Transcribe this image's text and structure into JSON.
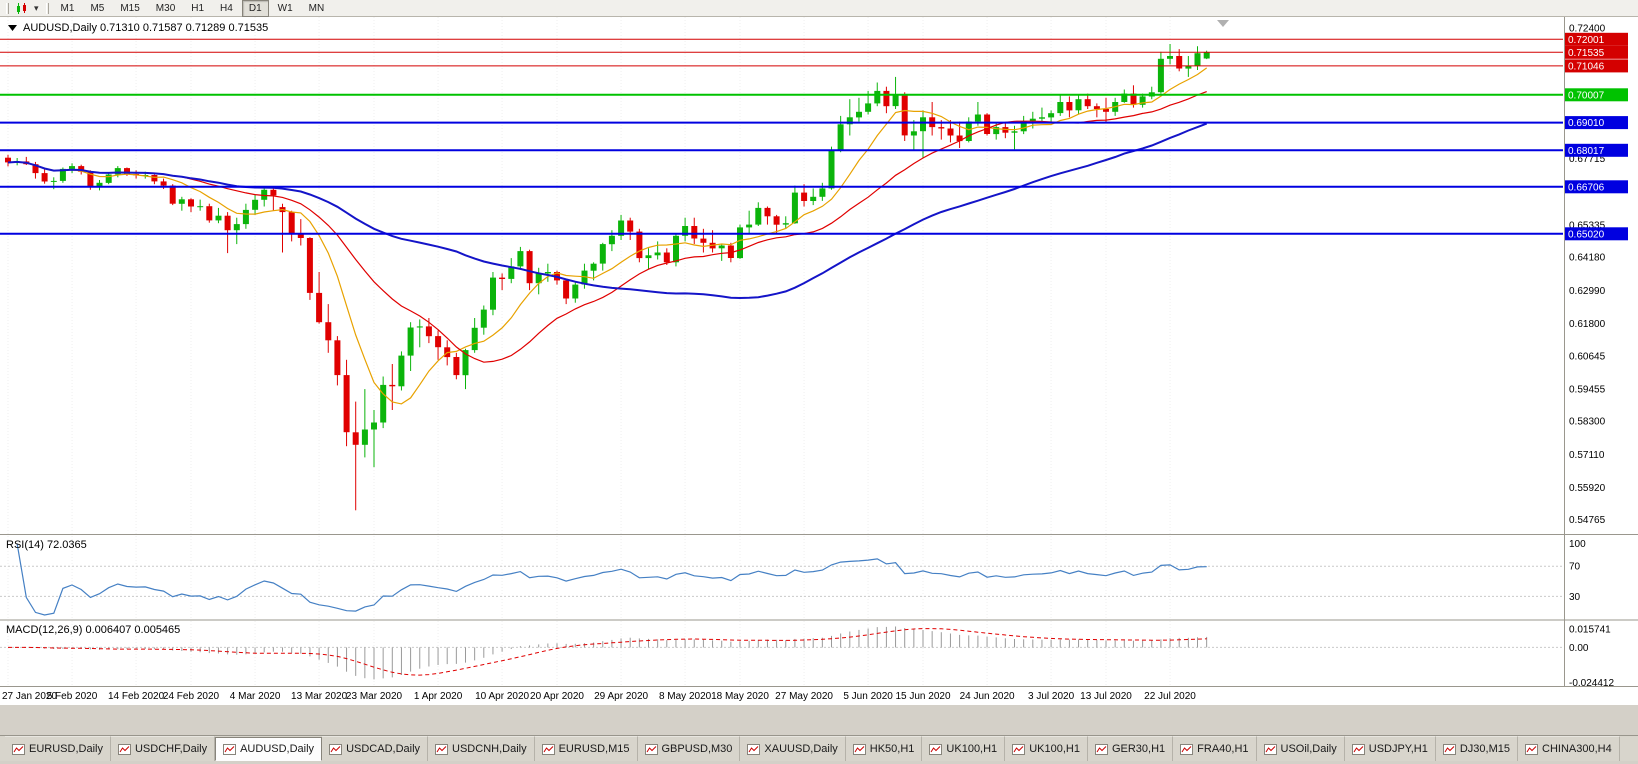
{
  "toolbar": {
    "timeframes": [
      "M1",
      "M5",
      "M15",
      "M30",
      "H1",
      "H4",
      "D1",
      "W1",
      "MN"
    ],
    "active_timeframe": "D1"
  },
  "chart": {
    "type": "candlestick",
    "symbol_title": "AUDUSD,Daily",
    "ohlc_text": "0.71310 0.71587 0.71289 0.71535",
    "colors": {
      "up": "#0bb40b",
      "down": "#e00000",
      "background": "#ffffff"
    },
    "y_axis": {
      "top_price": 0.728,
      "bottom_price": 0.5425,
      "ticks": [
        0.724,
        0.67715,
        0.65335,
        0.6418,
        0.6299,
        0.618,
        0.60645,
        0.59455,
        0.583,
        0.5711,
        0.5592,
        0.54765
      ]
    },
    "levels": [
      {
        "value": 0.72001,
        "label": "0.72001",
        "color": "#d40000",
        "width": 1
      },
      {
        "value": 0.71535,
        "label": "0.71535",
        "color": "#d40000",
        "width": 1
      },
      {
        "value": 0.71046,
        "label": "0.71046",
        "color": "#d40000",
        "width": 1
      },
      {
        "value": 0.70007,
        "label": "0.70007",
        "color": "#00c200",
        "width": 2
      },
      {
        "value": 0.6901,
        "label": "0.69010",
        "color": "#0000e0",
        "width": 2
      },
      {
        "value": 0.68017,
        "label": "0.68017",
        "color": "#0000e0",
        "width": 2
      },
      {
        "value": 0.66706,
        "label": "0.66706",
        "color": "#0000e0",
        "width": 2
      },
      {
        "value": 0.6502,
        "label": "0.65020",
        "color": "#0000e0",
        "width": 2
      }
    ],
    "x_labels": [
      {
        "index": 0,
        "label": "27 Jan 2020"
      },
      {
        "index": 7,
        "label": "5 Feb 2020"
      },
      {
        "index": 14,
        "label": "14 Feb 2020"
      },
      {
        "index": 20,
        "label": "24 Feb 2020"
      },
      {
        "index": 27,
        "label": "4 Mar 2020"
      },
      {
        "index": 34,
        "label": "13 Mar 2020"
      },
      {
        "index": 40,
        "label": "23 Mar 2020"
      },
      {
        "index": 47,
        "label": "1 Apr 2020"
      },
      {
        "index": 54,
        "label": "10 Apr 2020"
      },
      {
        "index": 60,
        "label": "20 Apr 2020"
      },
      {
        "index": 67,
        "label": "29 Apr 2020"
      },
      {
        "index": 74,
        "label": "8 May 2020"
      },
      {
        "index": 80,
        "label": "18 May 2020"
      },
      {
        "index": 87,
        "label": "27 May 2020"
      },
      {
        "index": 94,
        "label": "5 Jun 2020"
      },
      {
        "index": 100,
        "label": "15 Jun 2020"
      },
      {
        "index": 107,
        "label": "24 Jun 2020"
      },
      {
        "index": 114,
        "label": "3 Jul 2020"
      },
      {
        "index": 120,
        "label": "13 Jul 2020"
      },
      {
        "index": 127,
        "label": "22 Jul 2020"
      }
    ],
    "mas": [
      {
        "period": 8,
        "color": "#e8a200",
        "width": 1.2
      },
      {
        "period": 20,
        "color": "#e00000",
        "width": 1.2
      },
      {
        "period": 50,
        "color": "#1414c8",
        "width": 2
      }
    ],
    "rsi": {
      "label": "RSI(14) 72.0365",
      "period": 14,
      "color": "#4580c4",
      "levels": [
        70,
        30
      ],
      "ticks": [
        {
          "value": 100,
          "label": "100"
        },
        {
          "value": 70,
          "label": "70"
        },
        {
          "value": 30,
          "label": "30"
        }
      ]
    },
    "macd": {
      "label": "MACD(12,26,9) 0.006407 0.005465",
      "fast": 12,
      "slow": 26,
      "signal_period": 9,
      "hist_color": "#9a9a9a",
      "signal_color": "#e00000",
      "ticks": [
        {
          "value": 0.015741,
          "label": "0.015741"
        },
        {
          "value": 0,
          "label": "0.00"
        },
        {
          "value": -0.024412,
          "label": "-0.024412"
        }
      ]
    },
    "candles": [
      [
        0.6775,
        0.6786,
        0.6744,
        0.6758
      ],
      [
        0.6758,
        0.6774,
        0.6748,
        0.6762
      ],
      [
        0.6762,
        0.6778,
        0.6749,
        0.6752
      ],
      [
        0.6752,
        0.676,
        0.67,
        0.672
      ],
      [
        0.672,
        0.6733,
        0.6682,
        0.669
      ],
      [
        0.669,
        0.6705,
        0.6662,
        0.6692
      ],
      [
        0.6692,
        0.674,
        0.6685,
        0.6735
      ],
      [
        0.6735,
        0.6755,
        0.672,
        0.6745
      ],
      [
        0.6745,
        0.675,
        0.6715,
        0.6725
      ],
      [
        0.6725,
        0.673,
        0.666,
        0.667
      ],
      [
        0.667,
        0.6695,
        0.6658,
        0.6685
      ],
      [
        0.6685,
        0.6722,
        0.668,
        0.6715
      ],
      [
        0.6715,
        0.6745,
        0.6705,
        0.6738
      ],
      [
        0.6738,
        0.674,
        0.671,
        0.6717
      ],
      [
        0.6717,
        0.673,
        0.67,
        0.6712
      ],
      [
        0.6712,
        0.6725,
        0.67,
        0.6713
      ],
      [
        0.6713,
        0.6715,
        0.668,
        0.669
      ],
      [
        0.669,
        0.67,
        0.6663,
        0.6675
      ],
      [
        0.6675,
        0.668,
        0.6605,
        0.661
      ],
      [
        0.661,
        0.6635,
        0.6585,
        0.6626
      ],
      [
        0.6626,
        0.663,
        0.658,
        0.66
      ],
      [
        0.66,
        0.6625,
        0.6585,
        0.6601
      ],
      [
        0.6601,
        0.661,
        0.6542,
        0.655
      ],
      [
        0.655,
        0.6595,
        0.654,
        0.6567
      ],
      [
        0.6567,
        0.658,
        0.6433,
        0.6515
      ],
      [
        0.6515,
        0.656,
        0.6465,
        0.6537
      ],
      [
        0.6537,
        0.661,
        0.652,
        0.6588
      ],
      [
        0.6588,
        0.6645,
        0.657,
        0.6624
      ],
      [
        0.6624,
        0.6665,
        0.66,
        0.666
      ],
      [
        0.666,
        0.667,
        0.6585,
        0.664
      ],
      [
        0.6598,
        0.661,
        0.6435,
        0.658
      ],
      [
        0.658,
        0.6585,
        0.6475,
        0.65
      ],
      [
        0.65,
        0.6555,
        0.646,
        0.6487
      ],
      [
        0.6487,
        0.649,
        0.6265,
        0.629
      ],
      [
        0.629,
        0.6365,
        0.618,
        0.6185
      ],
      [
        0.6185,
        0.625,
        0.6075,
        0.612
      ],
      [
        0.612,
        0.6135,
        0.5958,
        0.5995
      ],
      [
        0.5995,
        0.605,
        0.574,
        0.579
      ],
      [
        0.579,
        0.59,
        0.551,
        0.5745
      ],
      [
        0.5745,
        0.5945,
        0.57,
        0.58
      ],
      [
        0.58,
        0.587,
        0.5665,
        0.5825
      ],
      [
        0.5825,
        0.599,
        0.5805,
        0.596
      ],
      [
        0.596,
        0.6035,
        0.587,
        0.5955
      ],
      [
        0.5955,
        0.608,
        0.594,
        0.6065
      ],
      [
        0.6065,
        0.6185,
        0.601,
        0.6166
      ],
      [
        0.6166,
        0.6195,
        0.6095,
        0.617
      ],
      [
        0.617,
        0.62,
        0.611,
        0.6135
      ],
      [
        0.6135,
        0.6155,
        0.605,
        0.6095
      ],
      [
        0.6095,
        0.612,
        0.603,
        0.606
      ],
      [
        0.606,
        0.6075,
        0.598,
        0.5995
      ],
      [
        0.5995,
        0.609,
        0.5945,
        0.6085
      ],
      [
        0.6085,
        0.62,
        0.6075,
        0.6165
      ],
      [
        0.6165,
        0.6245,
        0.614,
        0.623
      ],
      [
        0.623,
        0.6365,
        0.621,
        0.6345
      ],
      [
        0.6345,
        0.636,
        0.63,
        0.634
      ],
      [
        0.634,
        0.6415,
        0.6325,
        0.6385
      ],
      [
        0.6385,
        0.6455,
        0.6375,
        0.644
      ],
      [
        0.644,
        0.6445,
        0.63,
        0.6325
      ],
      [
        0.6325,
        0.638,
        0.6285,
        0.636
      ],
      [
        0.636,
        0.6395,
        0.633,
        0.6365
      ],
      [
        0.6365,
        0.637,
        0.632,
        0.6335
      ],
      [
        0.6335,
        0.634,
        0.625,
        0.627
      ],
      [
        0.627,
        0.633,
        0.6255,
        0.632
      ],
      [
        0.632,
        0.6395,
        0.6305,
        0.637
      ],
      [
        0.637,
        0.64,
        0.6335,
        0.6395
      ],
      [
        0.6395,
        0.647,
        0.637,
        0.6465
      ],
      [
        0.6465,
        0.6515,
        0.644,
        0.6495
      ],
      [
        0.6495,
        0.657,
        0.648,
        0.655
      ],
      [
        0.655,
        0.656,
        0.648,
        0.651
      ],
      [
        0.651,
        0.652,
        0.64,
        0.6415
      ],
      [
        0.6415,
        0.645,
        0.6375,
        0.6425
      ],
      [
        0.6425,
        0.6475,
        0.641,
        0.6435
      ],
      [
        0.6435,
        0.645,
        0.639,
        0.64
      ],
      [
        0.64,
        0.6505,
        0.6385,
        0.6495
      ],
      [
        0.6495,
        0.656,
        0.6475,
        0.653
      ],
      [
        0.653,
        0.656,
        0.6465,
        0.6485
      ],
      [
        0.6485,
        0.652,
        0.6435,
        0.647
      ],
      [
        0.647,
        0.6515,
        0.6435,
        0.645
      ],
      [
        0.645,
        0.6465,
        0.6405,
        0.646
      ],
      [
        0.646,
        0.647,
        0.64,
        0.6415
      ],
      [
        0.6415,
        0.6535,
        0.6412,
        0.6525
      ],
      [
        0.6525,
        0.6585,
        0.6505,
        0.6535
      ],
      [
        0.6535,
        0.6615,
        0.653,
        0.6595
      ],
      [
        0.6595,
        0.66,
        0.6535,
        0.6565
      ],
      [
        0.6565,
        0.657,
        0.6505,
        0.6535
      ],
      [
        0.6535,
        0.6565,
        0.652,
        0.654
      ],
      [
        0.654,
        0.6675,
        0.6538,
        0.665
      ],
      [
        0.665,
        0.668,
        0.66,
        0.662
      ],
      [
        0.662,
        0.6665,
        0.6605,
        0.6635
      ],
      [
        0.6635,
        0.6685,
        0.662,
        0.6665
      ],
      [
        0.6665,
        0.6815,
        0.666,
        0.68
      ],
      [
        0.68,
        0.6925,
        0.6795,
        0.6895
      ],
      [
        0.6895,
        0.6985,
        0.6855,
        0.692
      ],
      [
        0.692,
        0.699,
        0.6905,
        0.694
      ],
      [
        0.694,
        0.7015,
        0.693,
        0.697
      ],
      [
        0.697,
        0.7045,
        0.696,
        0.7015
      ],
      [
        0.7015,
        0.703,
        0.6935,
        0.696
      ],
      [
        0.696,
        0.7065,
        0.695,
        0.7
      ],
      [
        0.7,
        0.701,
        0.6835,
        0.6855
      ],
      [
        0.6855,
        0.691,
        0.68,
        0.687
      ],
      [
        0.687,
        0.6945,
        0.6775,
        0.692
      ],
      [
        0.692,
        0.6975,
        0.6855,
        0.6885
      ],
      [
        0.6885,
        0.691,
        0.684,
        0.688
      ],
      [
        0.688,
        0.691,
        0.683,
        0.6855
      ],
      [
        0.6855,
        0.6905,
        0.681,
        0.6835
      ],
      [
        0.6835,
        0.692,
        0.683,
        0.6905
      ],
      [
        0.6905,
        0.6975,
        0.689,
        0.693
      ],
      [
        0.693,
        0.6935,
        0.6855,
        0.686
      ],
      [
        0.686,
        0.69,
        0.684,
        0.6885
      ],
      [
        0.6885,
        0.69,
        0.6845,
        0.6865
      ],
      [
        0.6865,
        0.689,
        0.6805,
        0.687
      ],
      [
        0.687,
        0.6925,
        0.686,
        0.6905
      ],
      [
        0.6905,
        0.694,
        0.688,
        0.6915
      ],
      [
        0.6915,
        0.6955,
        0.69,
        0.692
      ],
      [
        0.692,
        0.6945,
        0.69,
        0.6935
      ],
      [
        0.6935,
        0.7,
        0.6925,
        0.6975
      ],
      [
        0.6975,
        0.6995,
        0.692,
        0.6945
      ],
      [
        0.6945,
        0.7,
        0.693,
        0.6985
      ],
      [
        0.6985,
        0.7005,
        0.695,
        0.696
      ],
      [
        0.696,
        0.697,
        0.692,
        0.695
      ],
      [
        0.695,
        0.699,
        0.69,
        0.694
      ],
      [
        0.694,
        0.699,
        0.6925,
        0.6975
      ],
      [
        0.6975,
        0.702,
        0.6972,
        0.7005
      ],
      [
        0.7005,
        0.7035,
        0.6955,
        0.6965
      ],
      [
        0.6965,
        0.7005,
        0.6955,
        0.6995
      ],
      [
        0.6995,
        0.703,
        0.6985,
        0.701
      ],
      [
        0.701,
        0.7155,
        0.7005,
        0.713
      ],
      [
        0.713,
        0.7183,
        0.711,
        0.714
      ],
      [
        0.714,
        0.7165,
        0.7085,
        0.7095
      ],
      [
        0.7095,
        0.714,
        0.7065,
        0.7105
      ],
      [
        0.7105,
        0.7175,
        0.709,
        0.715
      ],
      [
        0.7131,
        0.7159,
        0.7129,
        0.7154
      ]
    ]
  },
  "tabs": {
    "active": "AUDUSD,Daily",
    "items": [
      {
        "label": "EURUSD,Daily"
      },
      {
        "label": "USDCHF,Daily"
      },
      {
        "label": "AUDUSD,Daily"
      },
      {
        "label": "USDCAD,Daily"
      },
      {
        "label": "USDCNH,Daily"
      },
      {
        "label": "EURUSD,M15"
      },
      {
        "label": "GBPUSD,M30"
      },
      {
        "label": "XAUUSD,Daily"
      },
      {
        "label": "HK50,H1"
      },
      {
        "label": "UK100,H1"
      },
      {
        "label": "UK100,H1"
      },
      {
        "label": "GER30,H1"
      },
      {
        "label": "FRA40,H1"
      },
      {
        "label": "USOil,Daily"
      },
      {
        "label": "USDJPY,H1"
      },
      {
        "label": "DJ30,M15"
      },
      {
        "label": "CHINA300,H4"
      }
    ]
  }
}
